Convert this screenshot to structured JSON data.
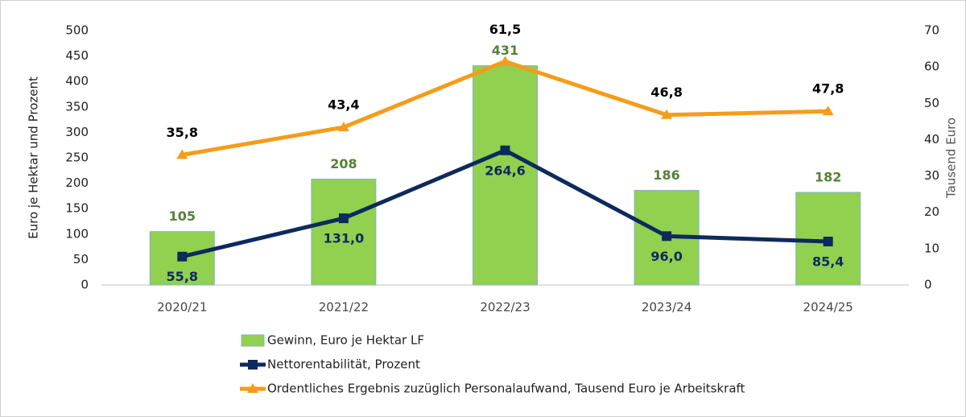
{
  "chart_data": {
    "type": "combo",
    "categories": [
      "2020/21",
      "2021/22",
      "2022/23",
      "2023/24",
      "2024/25"
    ],
    "ylabel": "Euro je Hektar und Prozent",
    "y2label": "Tausend Euro",
    "ylim": [
      0,
      500
    ],
    "yticks": [
      0,
      50,
      100,
      150,
      200,
      250,
      300,
      350,
      400,
      450,
      500
    ],
    "y2lim": [
      0,
      70
    ],
    "y2ticks": [
      0,
      10,
      20,
      30,
      40,
      50,
      60,
      70
    ],
    "grid": false,
    "legend": "bottom",
    "series": [
      {
        "name": "Gewinn, Euro je Hektar LF",
        "type": "bar",
        "color": "#92d050",
        "label_color": "#548235",
        "values": [
          105,
          208,
          431,
          186,
          182
        ]
      },
      {
        "name": "Nettorentabilität, Prozent",
        "type": "line",
        "marker": "square",
        "color": "#0d2a5c",
        "label_color": "#0d2a5c",
        "values": [
          55.8,
          131.0,
          264.6,
          96.0,
          85.4
        ],
        "value_labels": [
          "55,8",
          "131,0",
          "264,6",
          "96,0",
          "85,4"
        ]
      },
      {
        "name": "Ordentliches Ergebnis zuzüglich Personalaufwand, Tausend Euro je Arbeitskraft",
        "type": "line",
        "marker": "triangle",
        "axis": "y2",
        "color": "#f59c1a",
        "label_color": "#000000",
        "values": [
          35.8,
          43.4,
          61.5,
          46.8,
          47.8
        ],
        "value_labels": [
          "35,8",
          "43,4",
          "61,5",
          "46,8",
          "47,8"
        ]
      }
    ]
  }
}
